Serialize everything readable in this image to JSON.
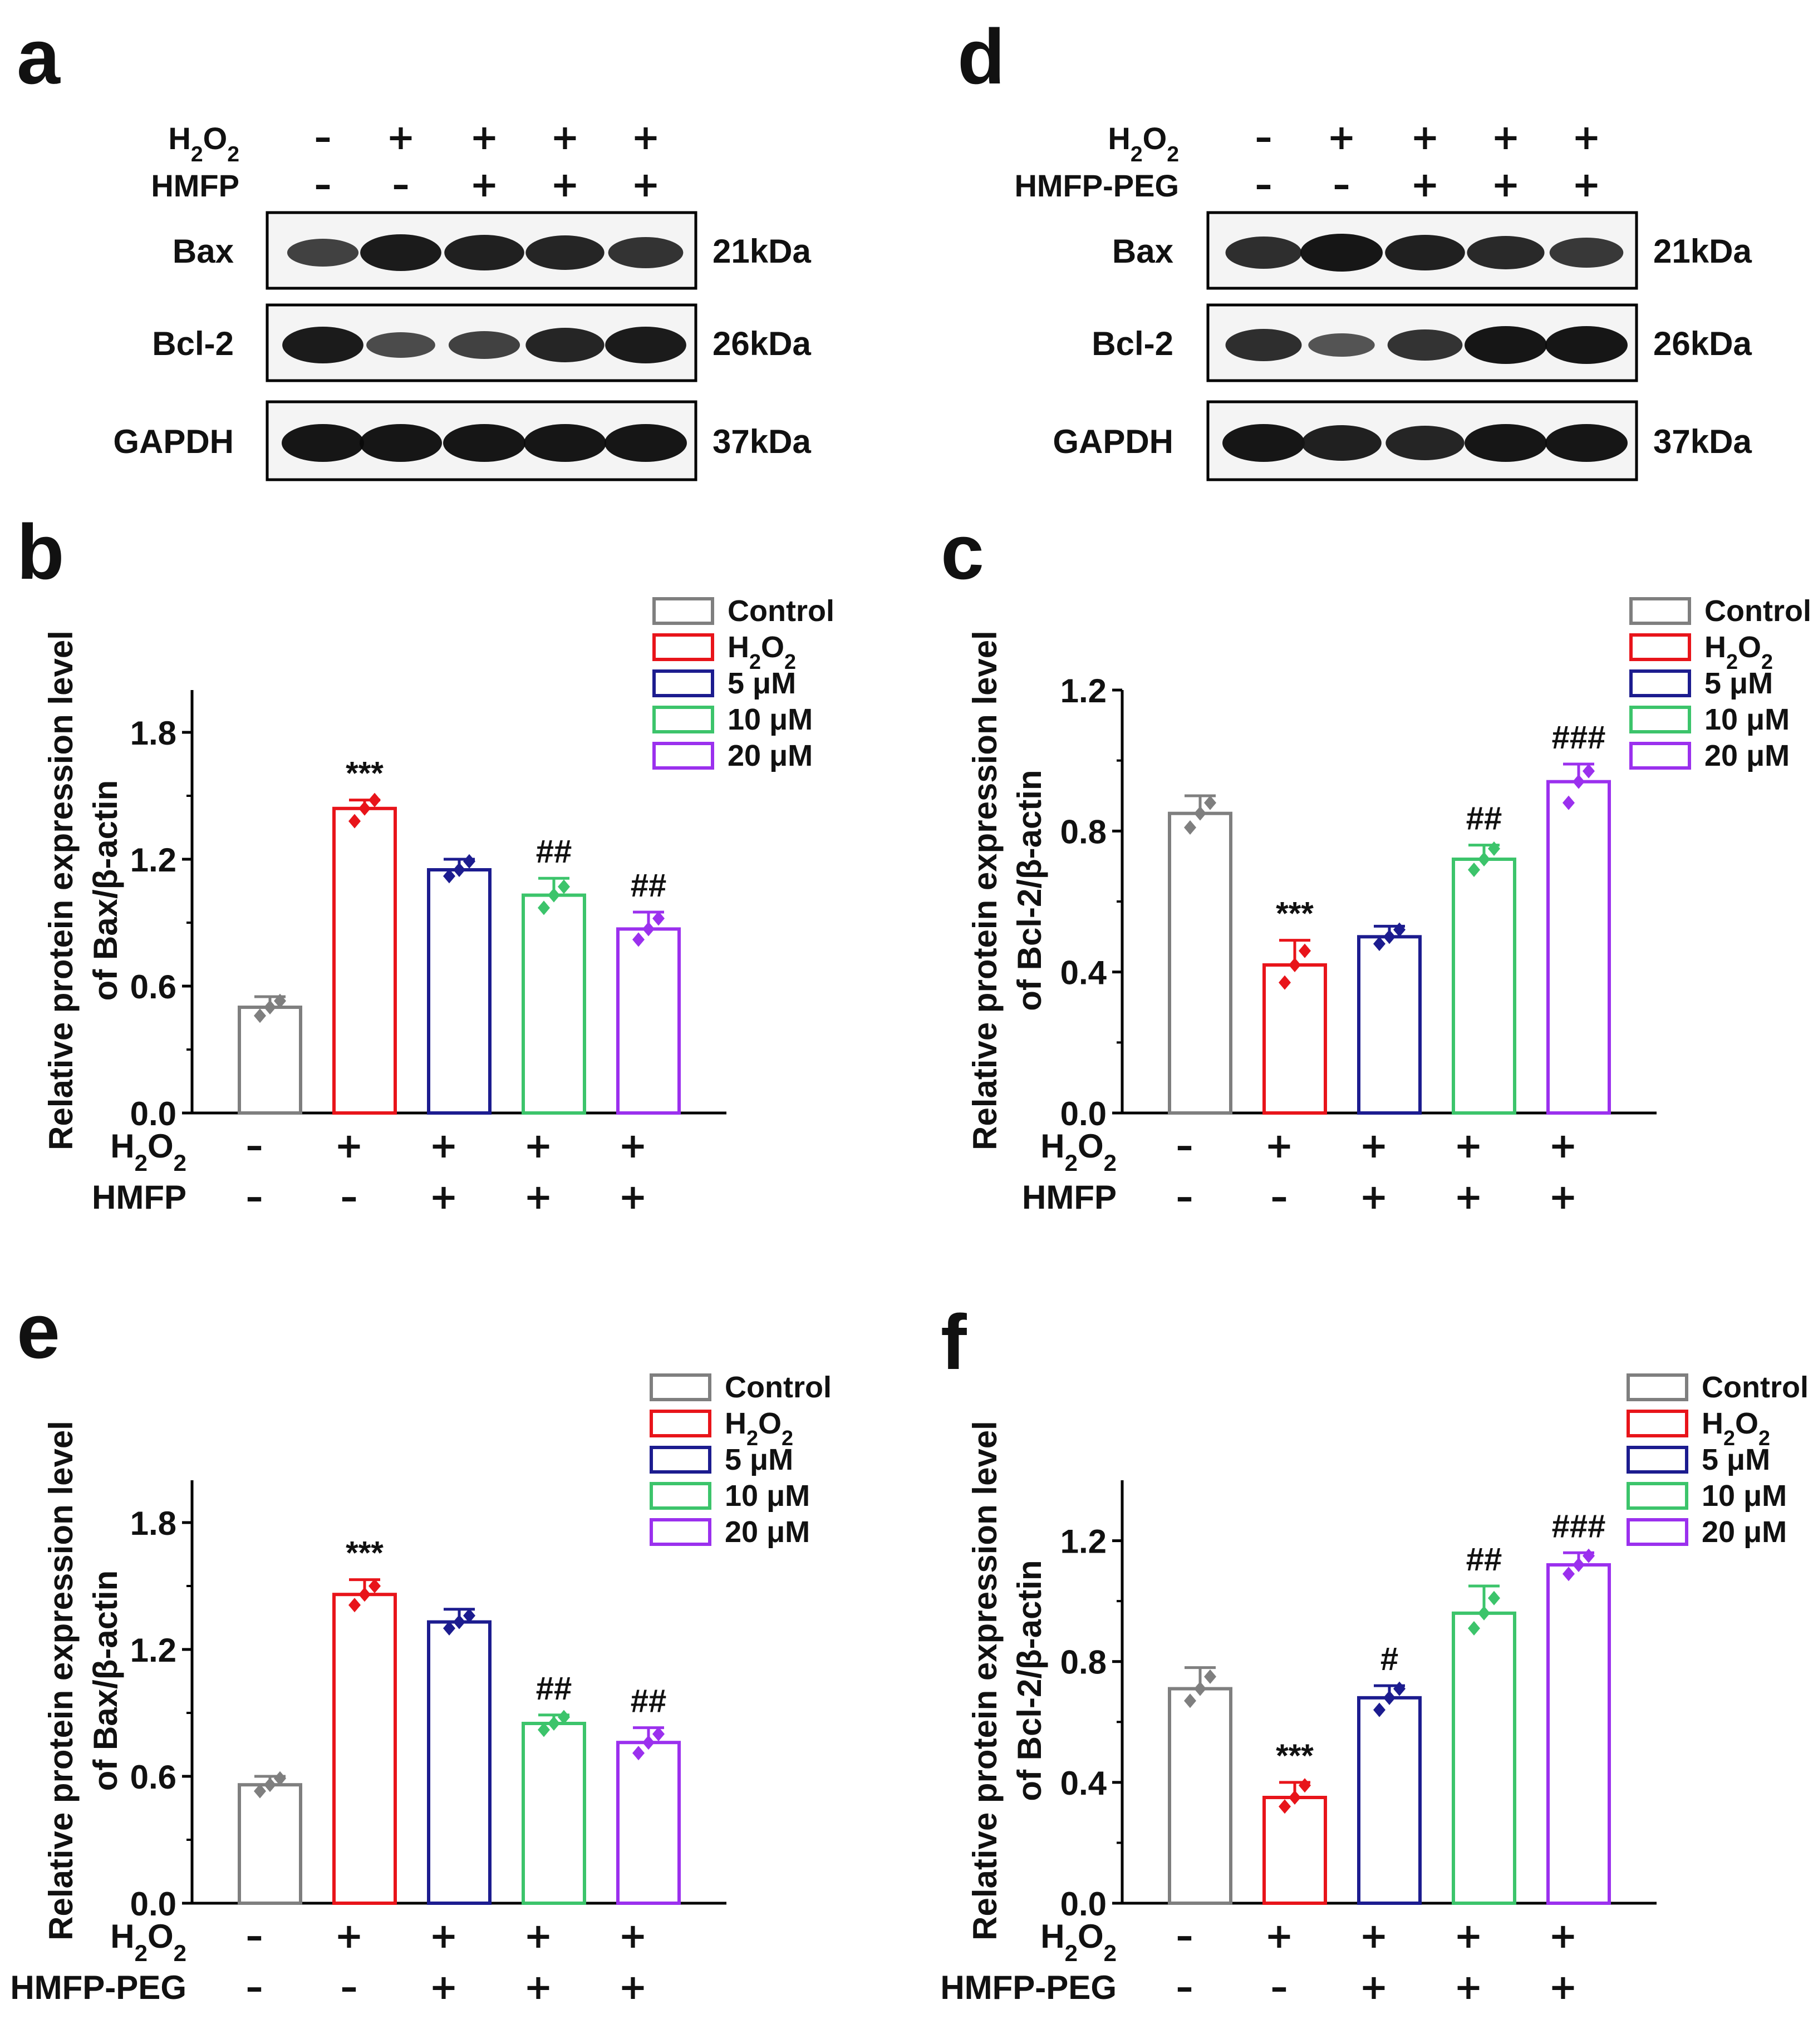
{
  "panels": {
    "a": {
      "letter": "a",
      "conditions": [
        {
          "name": "H",
          "sub": "2",
          "mid": "O",
          "sub2": "2",
          "signs": [
            "–",
            "+",
            "+",
            "+",
            "+"
          ]
        },
        {
          "name": "HMFP",
          "signs": [
            "–",
            "–",
            "+",
            "+",
            "+"
          ]
        }
      ],
      "bands": [
        {
          "label": "Bax",
          "size": "21kDa",
          "intensity": [
            0.55,
            0.95,
            0.9,
            0.85,
            0.7
          ]
        },
        {
          "label": "Bcl-2",
          "size": "26kDa",
          "intensity": [
            0.95,
            0.45,
            0.55,
            0.85,
            0.95
          ]
        },
        {
          "label": "GAPDH",
          "size": "37kDa",
          "intensity": [
            1,
            1,
            1,
            1,
            1
          ]
        }
      ]
    },
    "d": {
      "letter": "d",
      "conditions": [
        {
          "name": "H",
          "sub": "2",
          "mid": "O",
          "sub2": "2",
          "signs": [
            "–",
            "+",
            "+",
            "+",
            "+"
          ]
        },
        {
          "name": "HMFP-PEG",
          "signs": [
            "–",
            "–",
            "+",
            "+",
            "+"
          ]
        }
      ],
      "bands": [
        {
          "label": "Bax",
          "size": "21kDa",
          "intensity": [
            0.75,
            1,
            0.9,
            0.8,
            0.65
          ]
        },
        {
          "label": "Bcl-2",
          "size": "26kDa",
          "intensity": [
            0.75,
            0.35,
            0.7,
            1,
            1
          ]
        },
        {
          "label": "GAPDH",
          "size": "37kDa",
          "intensity": [
            1,
            0.9,
            0.85,
            1,
            1
          ]
        }
      ]
    }
  },
  "legend_items": [
    "Control",
    "H2O2",
    "5 μM",
    "10 μM",
    "20 μM"
  ],
  "colors": [
    "#7f7f7f",
    "#e8141a",
    "#1c1c8f",
    "#3cc46b",
    "#9b30ee"
  ],
  "chart_data": [
    {
      "panel": "b",
      "type": "bar",
      "ylabel": [
        "Relative protein expression level",
        "of Bax/β-actin"
      ],
      "ylim": [
        0,
        2.0
      ],
      "yticks": [
        "0.0",
        "0.6",
        "1.2",
        "1.8"
      ],
      "categories": [
        "Control",
        "H2O2",
        "5 μM",
        "10 μM",
        "20 μM"
      ],
      "values": [
        0.5,
        1.44,
        1.15,
        1.03,
        0.87
      ],
      "errors": [
        0.05,
        0.04,
        0.05,
        0.08,
        0.08
      ],
      "points": [
        [
          0.46,
          0.53
        ],
        [
          1.38,
          1.48
        ],
        [
          1.12,
          1.19
        ],
        [
          0.97,
          1.07
        ],
        [
          0.82,
          0.92
        ]
      ],
      "annotations": [
        "",
        "***",
        "",
        "##",
        "##"
      ],
      "x_conditions": [
        {
          "name": "H2O2",
          "signs": [
            "–",
            "+",
            "+",
            "+",
            "+"
          ]
        },
        {
          "name": "HMFP",
          "signs": [
            "–",
            "–",
            "+",
            "+",
            "+"
          ]
        }
      ]
    },
    {
      "panel": "c",
      "type": "bar",
      "ylabel": [
        "Relative protein expression level",
        "of Bcl-2/β-actin"
      ],
      "ylim": [
        0,
        1.2
      ],
      "yticks": [
        "0.0",
        "0.4",
        "0.8",
        "1.2"
      ],
      "categories": [
        "Control",
        "H2O2",
        "5 μM",
        "10 μM",
        "20 μM"
      ],
      "values": [
        0.85,
        0.42,
        0.5,
        0.72,
        0.94
      ],
      "errors": [
        0.05,
        0.07,
        0.03,
        0.04,
        0.05
      ],
      "points": [
        [
          0.81,
          0.88
        ],
        [
          0.37,
          0.46
        ],
        [
          0.48,
          0.52
        ],
        [
          0.69,
          0.75
        ],
        [
          0.88,
          0.97
        ]
      ],
      "annotations": [
        "",
        "***",
        "",
        "##",
        "###"
      ],
      "x_conditions": [
        {
          "name": "H2O2",
          "signs": [
            "–",
            "+",
            "+",
            "+",
            "+"
          ]
        },
        {
          "name": "HMFP",
          "signs": [
            "–",
            "–",
            "+",
            "+",
            "+"
          ]
        }
      ]
    },
    {
      "panel": "e",
      "type": "bar",
      "ylabel": [
        "Relative protein expression level",
        "of Bax/β-actin"
      ],
      "ylim": [
        0,
        2.0
      ],
      "yticks": [
        "0.0",
        "0.6",
        "1.2",
        "1.8"
      ],
      "categories": [
        "Control",
        "H2O2",
        "5 μM",
        "10 μM",
        "20 μM"
      ],
      "values": [
        0.56,
        1.46,
        1.33,
        0.85,
        0.76
      ],
      "errors": [
        0.04,
        0.07,
        0.06,
        0.04,
        0.07
      ],
      "points": [
        [
          0.53,
          0.59
        ],
        [
          1.41,
          1.5
        ],
        [
          1.3,
          1.36
        ],
        [
          0.82,
          0.88
        ],
        [
          0.71,
          0.8
        ]
      ],
      "annotations": [
        "",
        "***",
        "",
        "##",
        "##"
      ],
      "x_conditions": [
        {
          "name": "H2O2",
          "signs": [
            "–",
            "+",
            "+",
            "+",
            "+"
          ]
        },
        {
          "name": "HMFP-PEG",
          "signs": [
            "–",
            "–",
            "+",
            "+",
            "+"
          ]
        }
      ]
    },
    {
      "panel": "f",
      "type": "bar",
      "ylabel": [
        "Relative protein expression level",
        "of Bcl-2/β-actin"
      ],
      "ylim": [
        0,
        1.4
      ],
      "yticks": [
        "0.0",
        "0.4",
        "0.8",
        "1.2"
      ],
      "categories": [
        "Control",
        "H2O2",
        "5 μM",
        "10 μM",
        "20 μM"
      ],
      "values": [
        0.71,
        0.35,
        0.68,
        0.96,
        1.12
      ],
      "errors": [
        0.07,
        0.05,
        0.04,
        0.09,
        0.04
      ],
      "points": [
        [
          0.67,
          0.75
        ],
        [
          0.32,
          0.39
        ],
        [
          0.64,
          0.71
        ],
        [
          0.91,
          1.01
        ],
        [
          1.09,
          1.15
        ]
      ],
      "annotations": [
        "",
        "***",
        "#",
        "##",
        "###"
      ],
      "x_conditions": [
        {
          "name": "H2O2",
          "signs": [
            "–",
            "+",
            "+",
            "+",
            "+"
          ]
        },
        {
          "name": "HMFP-PEG",
          "signs": [
            "–",
            "–",
            "+",
            "+",
            "+"
          ]
        }
      ]
    }
  ]
}
